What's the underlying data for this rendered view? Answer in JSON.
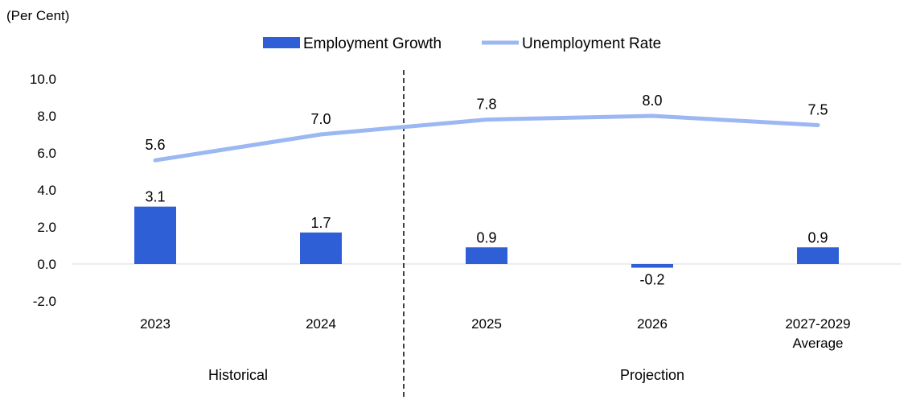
{
  "chart_data": {
    "type": "bar+line",
    "unit_label": "(Per Cent)",
    "categories": [
      [
        "2023"
      ],
      [
        "2024"
      ],
      [
        "2025"
      ],
      [
        "2026"
      ],
      [
        "2027-2029",
        "Average"
      ]
    ],
    "series": [
      {
        "name": "Employment Growth",
        "type": "bar",
        "color": "#2e5fd6",
        "values": [
          3.1,
          1.7,
          0.9,
          -0.2,
          0.9
        ],
        "labels": [
          "3.1",
          "1.7",
          "0.9",
          "-0.2",
          "0.9"
        ]
      },
      {
        "name": "Unemployment Rate",
        "type": "line",
        "color": "#9cb8f2",
        "values": [
          5.6,
          7.0,
          7.8,
          8.0,
          7.5
        ],
        "labels": [
          "5.6",
          "7.0",
          "7.8",
          "8.0",
          "7.5"
        ]
      }
    ],
    "ylim": [
      -2.0,
      10.0
    ],
    "yticks": [
      10.0,
      8.0,
      6.0,
      4.0,
      2.0,
      0.0,
      -2.0
    ],
    "ytick_labels": [
      "10.0",
      "8.0",
      "6.0",
      "4.0",
      "2.0",
      "0.0",
      "-2.0"
    ],
    "groups": [
      {
        "label": "Historical",
        "categories": [
          0,
          1
        ]
      },
      {
        "label": "Projection",
        "categories": [
          2,
          3,
          4
        ]
      }
    ],
    "divider_after_category": 1,
    "legend_position": "top-center",
    "grid": false
  }
}
